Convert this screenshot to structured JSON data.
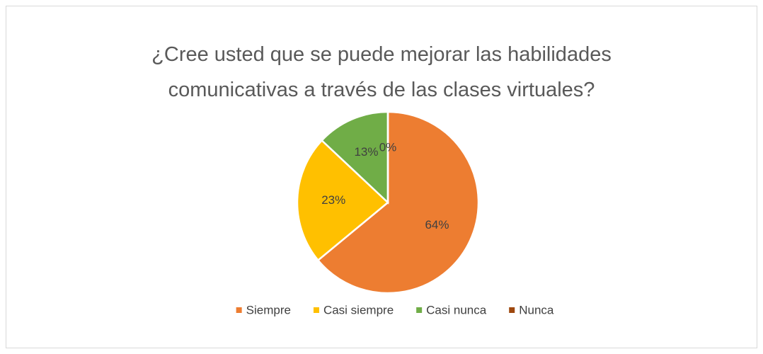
{
  "chart_data": {
    "type": "pie",
    "title": "¿Cree usted que se puede mejorar las habilidades comunicativas a través de las clases virtuales?",
    "categories": [
      "Siempre",
      "Casi siempre",
      "Casi nunca",
      "Nunca"
    ],
    "values": [
      64,
      23,
      13,
      0
    ],
    "value_labels": [
      "64%",
      "23%",
      "13%",
      "0%"
    ],
    "colors": [
      "#ED7D31",
      "#FFC000",
      "#70AD47",
      "#9E480E"
    ],
    "legend": "bottom"
  }
}
